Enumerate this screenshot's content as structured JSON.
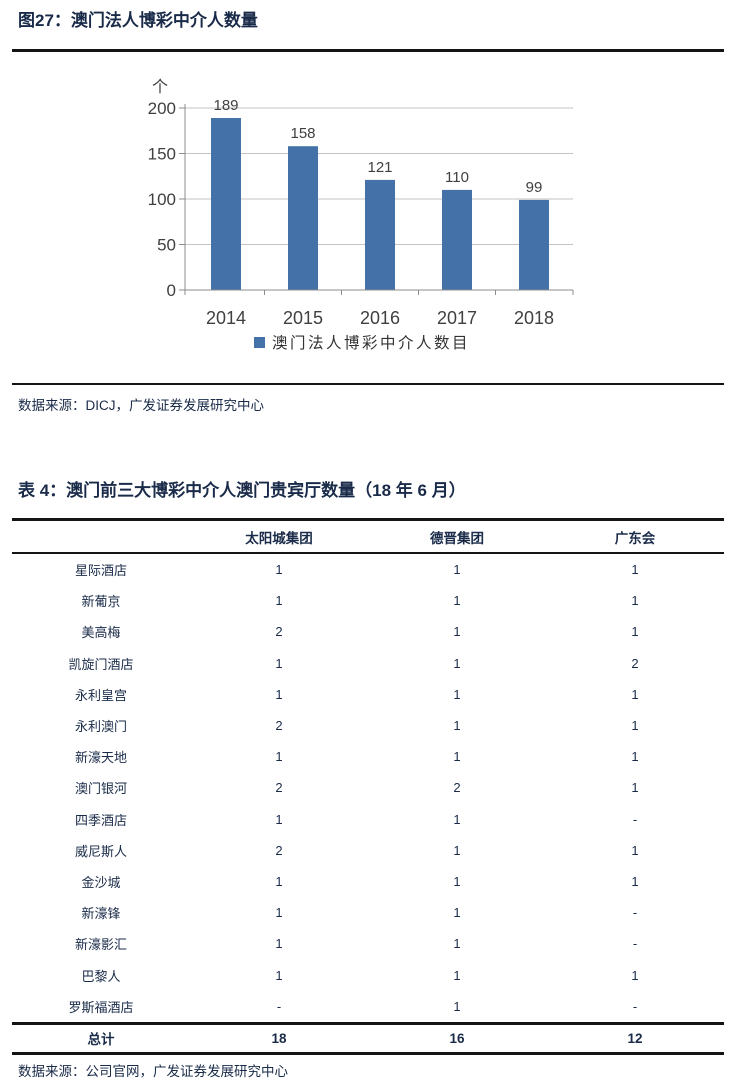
{
  "figure": {
    "title": "图27：澳门法人博彩中介人数量",
    "source": "数据来源：DICJ，广发证券发展研究中心"
  },
  "chart_data": {
    "type": "bar",
    "unit_label": "个",
    "categories": [
      "2014",
      "2015",
      "2016",
      "2017",
      "2018"
    ],
    "values": [
      189,
      158,
      121,
      110,
      99
    ],
    "series_name": "澳门法人博彩中介人数目",
    "ylim": [
      0,
      200
    ],
    "yticks": [
      0,
      50,
      100,
      150,
      200
    ],
    "grid": true,
    "data_labels": true,
    "legend_position": "bottom"
  },
  "table": {
    "title": "表 4：澳门前三大博彩中介人澳门贵宾厅数量（18 年 6 月）",
    "columns": [
      "",
      "太阳城集团",
      "德晋集团",
      "广东会"
    ],
    "rows": [
      [
        "星际酒店",
        "1",
        "1",
        "1"
      ],
      [
        "新葡京",
        "1",
        "1",
        "1"
      ],
      [
        "美高梅",
        "2",
        "1",
        "1"
      ],
      [
        "凯旋门酒店",
        "1",
        "1",
        "2"
      ],
      [
        "永利皇宫",
        "1",
        "1",
        "1"
      ],
      [
        "永利澳门",
        "2",
        "1",
        "1"
      ],
      [
        "新濠天地",
        "1",
        "1",
        "1"
      ],
      [
        "澳门银河",
        "2",
        "2",
        "1"
      ],
      [
        "四季酒店",
        "1",
        "1",
        "-"
      ],
      [
        "威尼斯人",
        "2",
        "1",
        "1"
      ],
      [
        "金沙城",
        "1",
        "1",
        "1"
      ],
      [
        "新濠锋",
        "1",
        "1",
        "-"
      ],
      [
        "新濠影汇",
        "1",
        "1",
        "-"
      ],
      [
        "巴黎人",
        "1",
        "1",
        "1"
      ],
      [
        "罗斯福酒店",
        "-",
        "1",
        "-"
      ]
    ],
    "total_row": [
      "总计",
      "18",
      "16",
      "12"
    ],
    "source": "数据来源：公司官网，广发证券发展研究中心"
  },
  "colors": {
    "heading_text": "#1a2b49",
    "rule": "#141414",
    "bar_fill": "#4472a8",
    "axis_text": "#404040",
    "gridline": "#c3c3c3",
    "axis_line": "#8c8c8c",
    "legend_text": "#333333"
  }
}
